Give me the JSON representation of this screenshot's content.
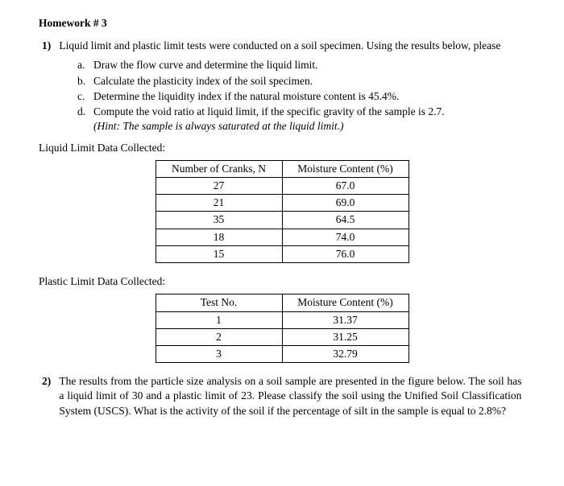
{
  "title": "Homework # 3",
  "q1": {
    "num": "1)",
    "intro": "Liquid limit and plastic limit tests were conducted on a soil specimen. Using the results below, please",
    "subs": [
      {
        "letter": "a.",
        "text": "Draw the flow curve and determine the liquid limit."
      },
      {
        "letter": "b.",
        "text": "Calculate the plasticity index of the soil specimen."
      },
      {
        "letter": "c.",
        "text": "Determine the liquidity index if the natural moisture content is 45.4%."
      },
      {
        "letter": "d.",
        "text": "Compute the void ratio at liquid limit, if the specific gravity of the sample is 2.7."
      }
    ],
    "hint": "(Hint: The sample is always saturated at the liquid limit.)"
  },
  "ll_section": {
    "label": "Liquid Limit Data Collected:",
    "table": {
      "headers": [
        "Number of Cranks, N",
        "Moisture Content (%)"
      ],
      "rows": [
        [
          "27",
          "67.0"
        ],
        [
          "21",
          "69.0"
        ],
        [
          "35",
          "64.5"
        ],
        [
          "18",
          "74.0"
        ],
        [
          "15",
          "76.0"
        ]
      ]
    }
  },
  "pl_section": {
    "label": "Plastic Limit Data Collected:",
    "table": {
      "headers": [
        "Test No.",
        "Moisture Content (%)"
      ],
      "rows": [
        [
          "1",
          "31.37"
        ],
        [
          "2",
          "31.25"
        ],
        [
          "3",
          "32.79"
        ]
      ]
    }
  },
  "q2": {
    "num": "2)",
    "text": "The results from the particle size analysis on a soil sample are presented in the figure below. The soil has a liquid limit of 30 and a plastic limit of 23. Please classify the soil using the Unified Soil Classification System (USCS). What is the activity of the soil if the percentage of silt in the sample is equal to 2.8%?"
  },
  "style": {
    "text_color": "#000000",
    "background": "#ffffff",
    "font_family": "Times New Roman",
    "base_fontsize_pt": 10,
    "table_border_color": "#000000"
  }
}
